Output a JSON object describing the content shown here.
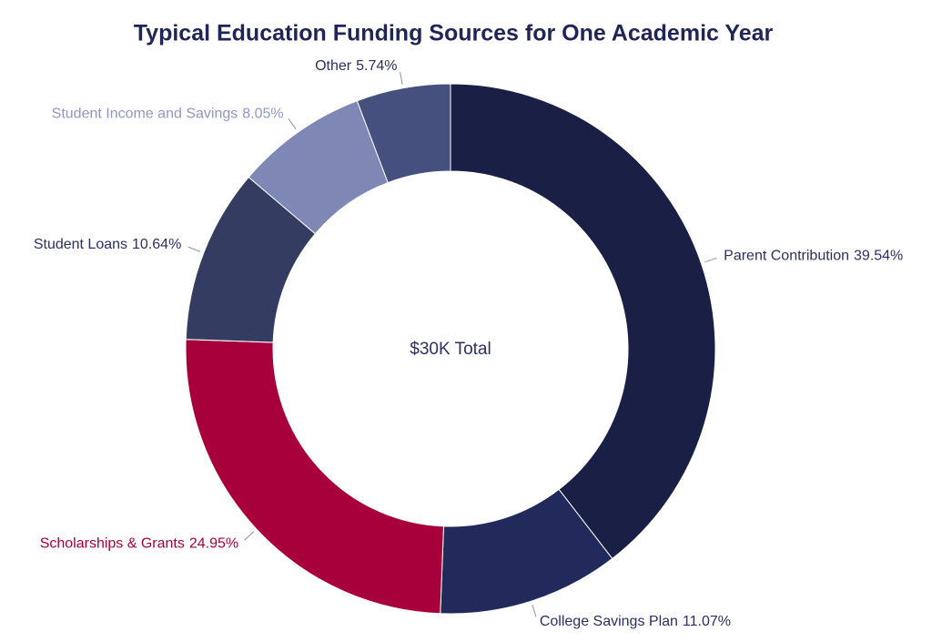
{
  "chart_data": {
    "type": "donut",
    "title": "Typical Education Funding Sources for One Academic Year",
    "center_text": "$30K Total",
    "categories": [
      "Parent Contribution",
      "College Savings Plan",
      "Scholarships & Grants",
      "Student Loans",
      "Student Income and Savings",
      "Other"
    ],
    "values": [
      39.54,
      11.07,
      24.95,
      10.64,
      8.05,
      5.74
    ],
    "value_labels": [
      "39.54%",
      "11.07%",
      "24.95%",
      "10.64%",
      "8.05%",
      "5.74%"
    ],
    "colors": [
      "#1a1f45",
      "#222a5c",
      "#a8003a",
      "#343c62",
      "#7f88b5",
      "#46507e"
    ],
    "label_colors": [
      "#2a3060",
      "#2a3060",
      "#a8003a",
      "#2a3060",
      "#8f97c0",
      "#2a3060"
    ]
  }
}
